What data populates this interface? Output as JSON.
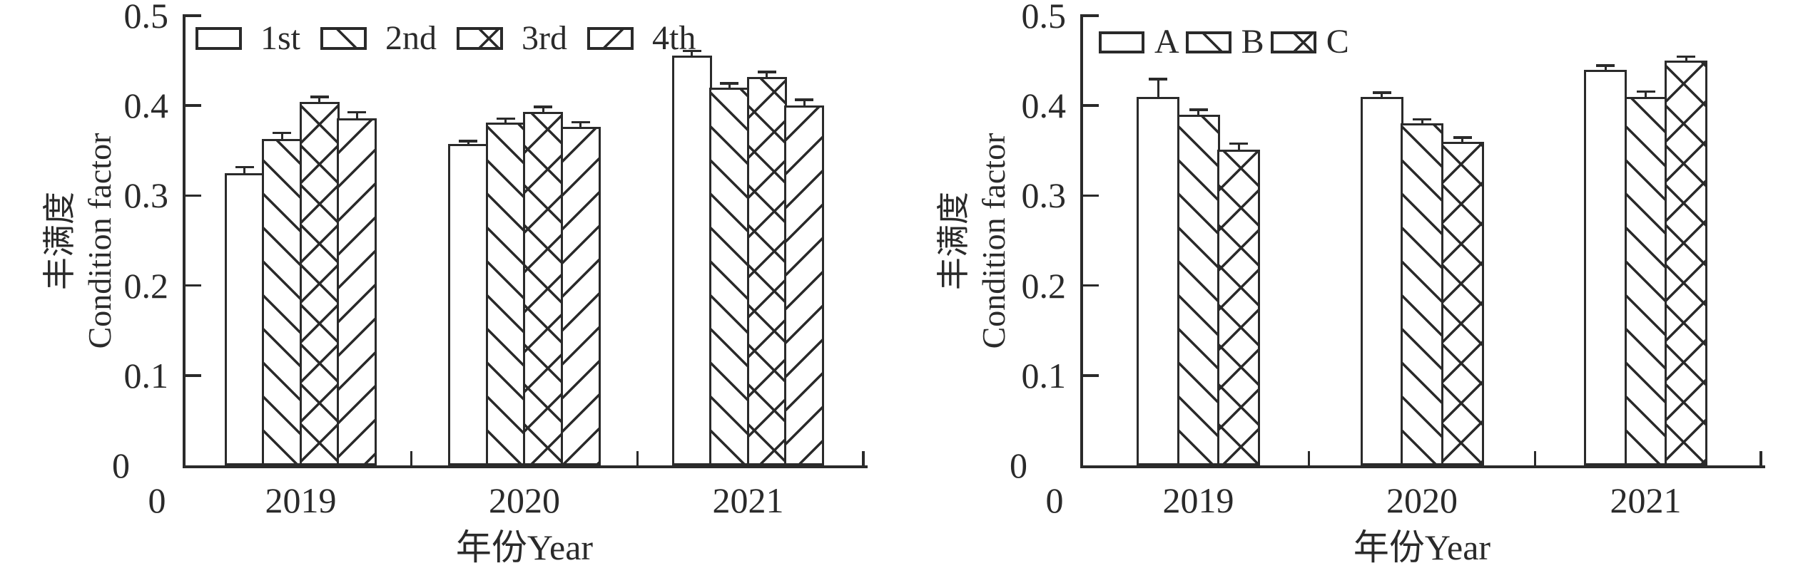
{
  "figure": {
    "background": "#ffffff",
    "ink_color": "#2a2a2a"
  },
  "chart_data": [
    {
      "id": "left",
      "type": "bar",
      "title": "",
      "categories": [
        "2019",
        "2020",
        "2021"
      ],
      "series": [
        {
          "name": "1st",
          "hatch": "plain",
          "values": [
            0.325,
            0.357,
            0.456
          ],
          "errors": [
            0.006,
            0.003,
            0.004
          ]
        },
        {
          "name": "2nd",
          "hatch": "down",
          "values": [
            0.363,
            0.381,
            0.42
          ],
          "errors": [
            0.006,
            0.004,
            0.004
          ]
        },
        {
          "name": "3rd",
          "hatch": "cross",
          "values": [
            0.404,
            0.393,
            0.432
          ],
          "errors": [
            0.005,
            0.005,
            0.005
          ]
        },
        {
          "name": "4th",
          "hatch": "up",
          "values": [
            0.386,
            0.376,
            0.4
          ],
          "errors": [
            0.006,
            0.005,
            0.006
          ]
        }
      ],
      "ylabel_lines": [
        "丰满度",
        "Condition factor"
      ],
      "xlabel": "年份Year",
      "ylim": [
        0,
        0.5
      ],
      "yticks": [
        0,
        0.1,
        0.2,
        0.3,
        0.4,
        0.5
      ],
      "ytick_labels": [
        "0",
        "0.1",
        "0.2",
        "0.3",
        "0.4",
        "0.5"
      ],
      "x_origin_label": "0",
      "legend_position": "top-inside",
      "grid": false,
      "bar_fill": "#ffffff",
      "bar_edge": "#2a2a2a"
    },
    {
      "id": "right",
      "type": "bar",
      "title": "",
      "categories": [
        "2019",
        "2020",
        "2021"
      ],
      "series": [
        {
          "name": "A",
          "hatch": "plain",
          "values": [
            0.41,
            0.41,
            0.44
          ],
          "errors": [
            0.019,
            0.004,
            0.004
          ]
        },
        {
          "name": "B",
          "hatch": "down",
          "values": [
            0.39,
            0.38,
            0.41
          ],
          "errors": [
            0.005,
            0.004,
            0.005
          ]
        },
        {
          "name": "C",
          "hatch": "cross",
          "values": [
            0.351,
            0.36,
            0.45
          ],
          "errors": [
            0.006,
            0.004,
            0.004
          ]
        }
      ],
      "ylabel_lines": [
        "丰满度",
        "Condition factor"
      ],
      "xlabel": "年份Year",
      "ylim": [
        0,
        0.5
      ],
      "yticks": [
        0,
        0.1,
        0.2,
        0.3,
        0.4,
        0.5
      ],
      "ytick_labels": [
        "0",
        "0.1",
        "0.2",
        "0.3",
        "0.4",
        "0.5"
      ],
      "x_origin_label": "0",
      "legend_position": "top-inside",
      "grid": false,
      "bar_fill": "#ffffff",
      "bar_edge": "#2a2a2a"
    }
  ]
}
